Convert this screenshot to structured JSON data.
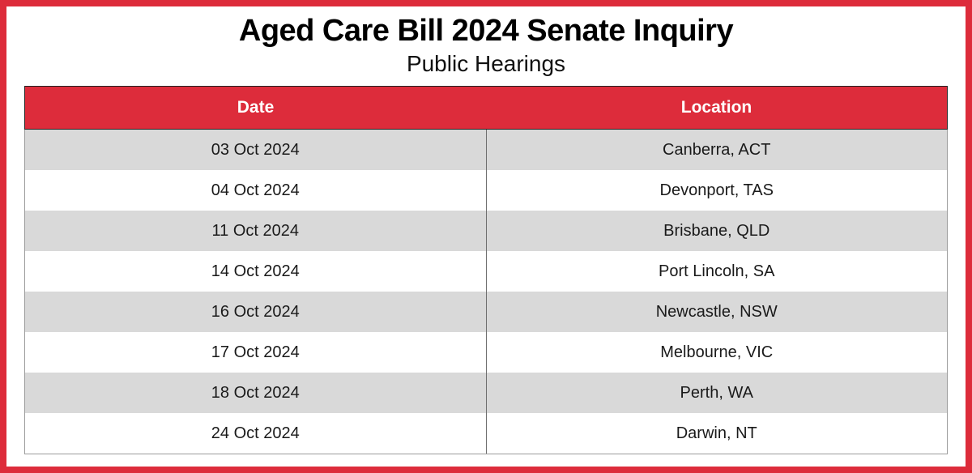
{
  "page": {
    "title": "Aged Care Bill 2024 Senate Inquiry",
    "subtitle": "Public Hearings"
  },
  "table": {
    "columns": [
      "Date",
      "Location"
    ],
    "rows": [
      {
        "date": "03 Oct 2024",
        "location": "Canberra, ACT"
      },
      {
        "date": "04 Oct 2024",
        "location": "Devonport, TAS"
      },
      {
        "date": "11 Oct 2024",
        "location": "Brisbane, QLD"
      },
      {
        "date": "14 Oct 2024",
        "location": "Port Lincoln, SA"
      },
      {
        "date": "16 Oct 2024",
        "location": "Newcastle, NSW"
      },
      {
        "date": "17 Oct 2024",
        "location": "Melbourne, VIC"
      },
      {
        "date": "18 Oct 2024",
        "location": "Perth, WA"
      },
      {
        "date": "24 Oct 2024",
        "location": "Darwin, NT"
      }
    ]
  },
  "colors": {
    "accent_red": "#DD2C3B",
    "alt_row_gray": "#D9D9D9",
    "header_text": "#FFFFFF",
    "body_text": "#1A1A1A"
  }
}
